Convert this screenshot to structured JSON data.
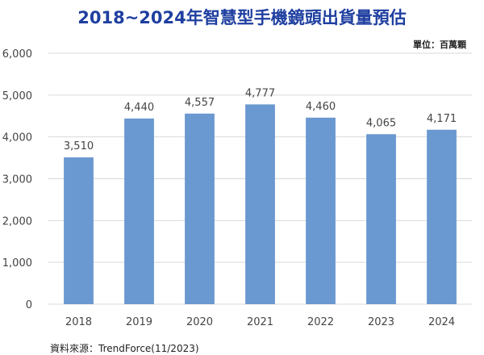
{
  "title": "2018~2024年智慧型手機鏡頭出貨量預估",
  "unit_note": "單位：百萬顆",
  "source_note": "資料來源：TrendForce(11/2023)",
  "colors": {
    "bar": "#6a98d0",
    "grid": "#d9d9d9",
    "title": "#1f3fa0"
  },
  "chart_data": {
    "type": "bar",
    "title": "2018~2024年智慧型手機鏡頭出貨量預估",
    "categories": [
      "2018",
      "2019",
      "2020",
      "2021",
      "2022",
      "2023",
      "2024"
    ],
    "values": [
      3510,
      4440,
      4557,
      4777,
      4460,
      4065,
      4171
    ],
    "value_labels": [
      "3,510",
      "4,440",
      "4,557",
      "4,777",
      "4,460",
      "4,065",
      "4,171"
    ],
    "yticks": [
      0,
      1000,
      2000,
      3000,
      4000,
      5000,
      6000
    ],
    "ytick_labels": [
      "0",
      "1,000",
      "2,000",
      "3,000",
      "4,000",
      "5,000",
      "6,000"
    ],
    "ylim": [
      0,
      6000
    ],
    "xlabel": "",
    "ylabel": "",
    "grid": true,
    "legend": "none"
  }
}
